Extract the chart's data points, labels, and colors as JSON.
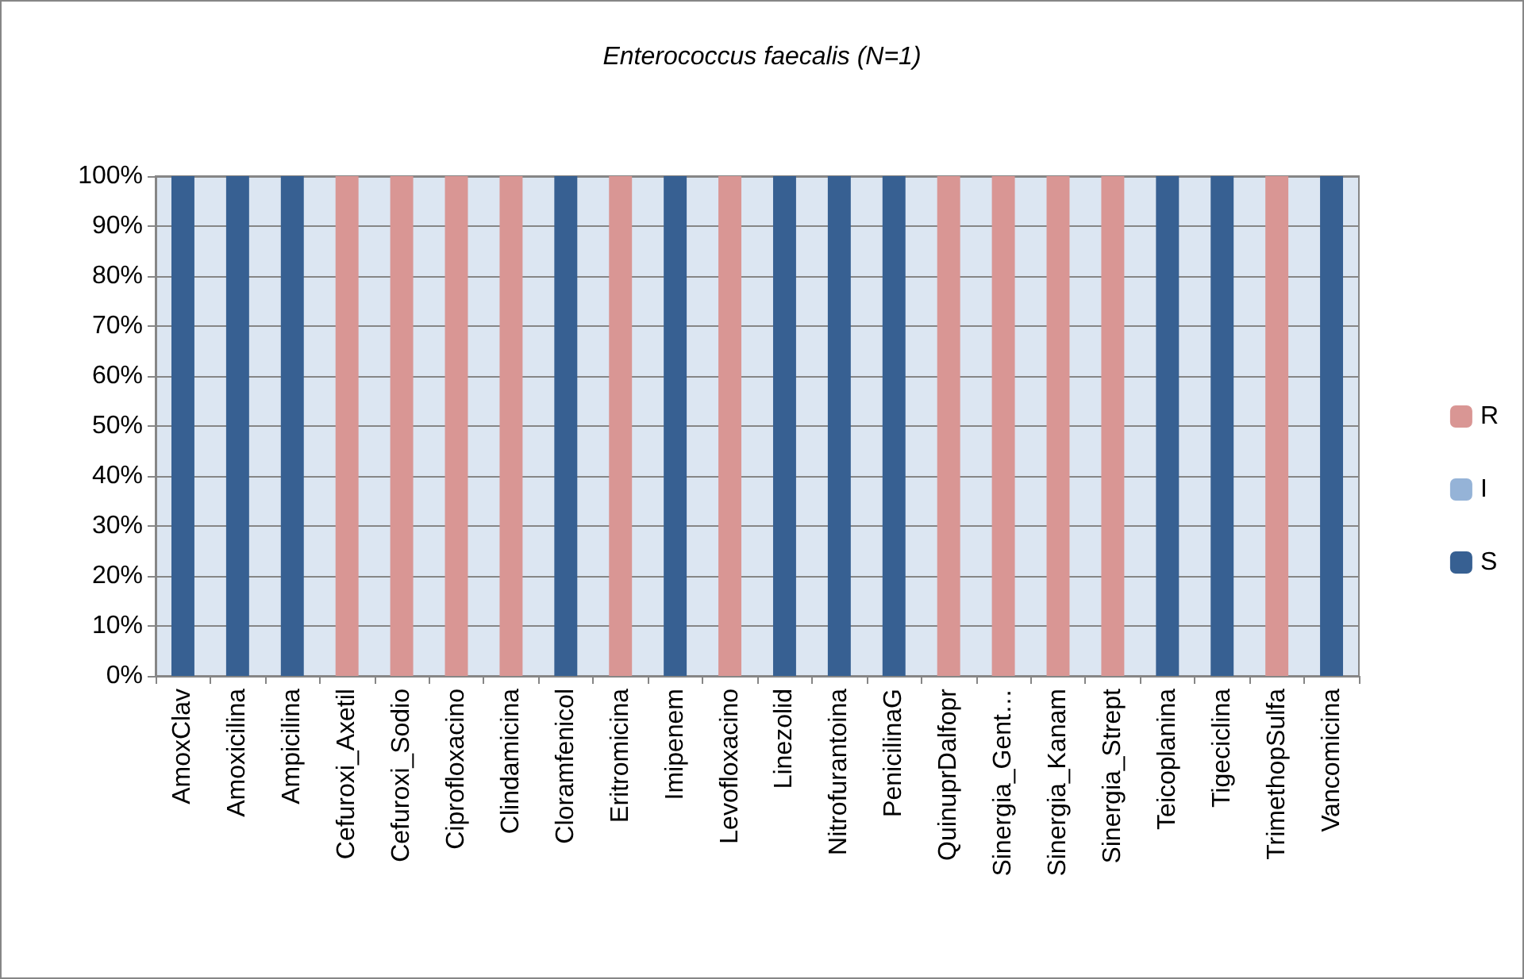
{
  "chart_data": {
    "type": "bar",
    "title": "Enterococcus faecalis (N=1)",
    "categories": [
      "AmoxClav",
      "Amoxicilina",
      "Ampicilina",
      "Cefuroxi_Axetil",
      "Cefuroxi_Sodio",
      "Ciprofloxacino",
      "Clindamicina",
      "Cloramfenicol",
      "Eritromicina",
      "Imipenem",
      "Levofloxacino",
      "Linezolid",
      "Nitrofurantoina",
      "PenicilinaG",
      "QuinuprDalfopr",
      "Sinergia_Gent…",
      "Sinergia_Kanam",
      "Sinergia_Strept",
      "Teicoplanina",
      "Tigeciclina",
      "TrimethopSulfa",
      "Vancomicina"
    ],
    "series": [
      {
        "name": "S",
        "color": "#376092",
        "values": [
          100,
          100,
          100,
          0,
          0,
          0,
          0,
          100,
          0,
          100,
          0,
          100,
          100,
          100,
          0,
          0,
          0,
          0,
          100,
          100,
          0,
          100
        ]
      },
      {
        "name": "I",
        "color": "#95b3d7",
        "values": [
          0,
          0,
          0,
          0,
          0,
          0,
          0,
          0,
          0,
          0,
          0,
          0,
          0,
          0,
          0,
          0,
          0,
          0,
          0,
          0,
          0,
          0
        ]
      },
      {
        "name": "R",
        "color": "#d99694",
        "values": [
          0,
          0,
          0,
          100,
          100,
          100,
          100,
          0,
          100,
          0,
          100,
          0,
          0,
          0,
          100,
          100,
          100,
          100,
          0,
          0,
          100,
          0
        ]
      }
    ],
    "stacked": true,
    "ylim": [
      0,
      100
    ],
    "yticks": [
      {
        "value": 0,
        "label": "0%"
      },
      {
        "value": 10,
        "label": "10%"
      },
      {
        "value": 20,
        "label": "20%"
      },
      {
        "value": 30,
        "label": "30%"
      },
      {
        "value": 40,
        "label": "40%"
      },
      {
        "value": 50,
        "label": "50%"
      },
      {
        "value": 60,
        "label": "60%"
      },
      {
        "value": 70,
        "label": "70%"
      },
      {
        "value": 80,
        "label": "80%"
      },
      {
        "value": 90,
        "label": "90%"
      },
      {
        "value": 100,
        "label": "100%"
      }
    ],
    "grid": "y",
    "legend": "right"
  }
}
